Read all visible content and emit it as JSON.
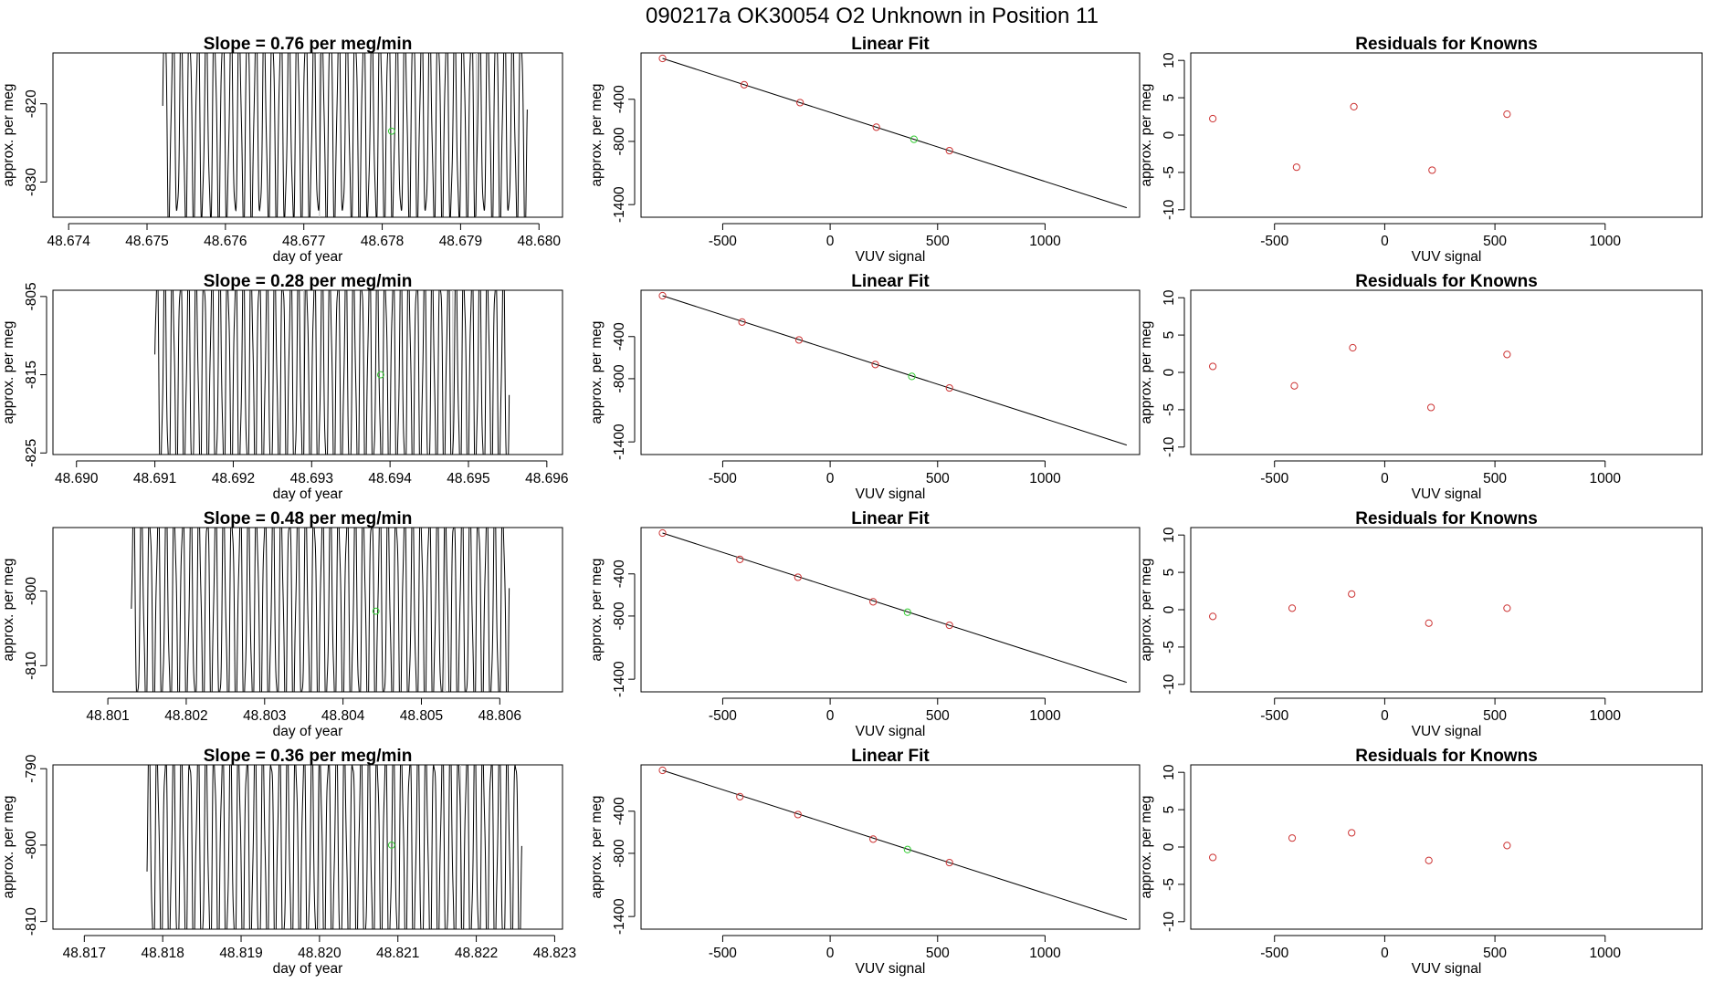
{
  "chart_data": {
    "title": "090217a      OK30054    O2 Unknown in Position  11",
    "colors": {
      "known": "#cc3333",
      "unknown": "#33cc33",
      "line": "#000000",
      "axis": "#000000"
    },
    "rows": [
      {
        "timeseries": {
          "type": "line",
          "title": "Slope =  0.76  per meg/min",
          "xlabel": "day of year",
          "ylabel": "approx. per meg",
          "xlim": [
            48.6738,
            48.6803
          ],
          "ylim": [
            -834.5,
            -813.5
          ],
          "xticks": [
            48.674,
            48.675,
            48.676,
            48.677,
            48.678,
            48.679,
            48.68
          ],
          "xtick_labels": [
            "48.674",
            "48.675",
            "48.676",
            "48.677",
            "48.678",
            "48.679",
            "48.680"
          ],
          "yticks": [
            -830,
            -820
          ],
          "ytick_labels": [
            "-830",
            "-820"
          ],
          "signal": {
            "x_start": 48.6752,
            "x_end": 48.67985,
            "cycles": 44,
            "mean": -822.5,
            "amplitude": 13,
            "ripple": 2.5
          },
          "vlines": [
            48.6772,
            48.6792
          ],
          "unknown_point": {
            "x": 48.67812,
            "y": -823.5
          }
        },
        "fit": {
          "type": "scatter",
          "title": "Linear Fit",
          "xlabel": "VUV signal",
          "ylabel": "approx. per meg",
          "xlim": [
            -880,
            1440
          ],
          "ylim": [
            -1520,
            40
          ],
          "xticks": [
            -500,
            0,
            500,
            1000
          ],
          "xtick_labels": [
            "-500",
            "0",
            "500",
            "1000"
          ],
          "yticks": [
            -1400,
            -800,
            -400
          ],
          "ytick_labels": [
            "-1400",
            "-800",
            "-400"
          ],
          "line": [
            [
              -780,
              -12
            ],
            [
              1380,
              -1430
            ]
          ],
          "knowns": [
            [
              -780,
              -12
            ],
            [
              -400,
              -262
            ],
            [
              -140,
              -432
            ],
            [
              215,
              -665
            ],
            [
              555,
              -888
            ]
          ],
          "unknown": [
            [
              390,
              -780
            ]
          ]
        },
        "residuals": {
          "type": "scatter",
          "title": "Residuals for Knowns",
          "xlabel": "VUV signal",
          "ylabel": "approx. per meg",
          "xlim": [
            -880,
            1440
          ],
          "ylim": [
            -11,
            11
          ],
          "xticks": [
            -500,
            0,
            500,
            1000
          ],
          "xtick_labels": [
            "-500",
            "0",
            "500",
            "1000"
          ],
          "yticks": [
            -10,
            -5,
            0,
            5,
            10
          ],
          "ytick_labels": [
            "-10",
            "-5",
            "0",
            "5",
            "10"
          ],
          "points": [
            [
              -780,
              2.2
            ],
            [
              -400,
              -4.3
            ],
            [
              -140,
              3.8
            ],
            [
              215,
              -4.7
            ],
            [
              555,
              2.8
            ]
          ]
        }
      },
      {
        "timeseries": {
          "type": "line",
          "title": "Slope =  0.28  per meg/min",
          "xlabel": "day of year",
          "ylabel": "approx. per meg",
          "xlim": [
            48.6897,
            48.6962
          ],
          "ylim": [
            -825.2,
            -804.2
          ],
          "xticks": [
            48.69,
            48.691,
            48.692,
            48.693,
            48.694,
            48.695,
            48.696
          ],
          "xtick_labels": [
            "48.690",
            "48.691",
            "48.692",
            "48.693",
            "48.694",
            "48.695",
            "48.696"
          ],
          "yticks": [
            -825,
            -815,
            -805
          ],
          "ytick_labels": [
            "-825",
            "-815",
            "-805"
          ],
          "signal": {
            "x_start": 48.691,
            "x_end": 48.69552,
            "cycles": 45,
            "mean": -815,
            "amplitude": 14,
            "ripple": 3
          },
          "vlines": [
            48.6929,
            48.6948
          ],
          "unknown_point": {
            "x": 48.69388,
            "y": -815
          }
        },
        "fit": {
          "type": "scatter",
          "title": "Linear Fit",
          "xlabel": "VUV signal",
          "ylabel": "approx. per meg",
          "xlim": [
            -880,
            1440
          ],
          "ylim": [
            -1520,
            40
          ],
          "xticks": [
            -500,
            0,
            500,
            1000
          ],
          "xtick_labels": [
            "-500",
            "0",
            "500",
            "1000"
          ],
          "yticks": [
            -1400,
            -800,
            -400
          ],
          "ytick_labels": [
            "-1400",
            "-800",
            "-400"
          ],
          "line": [
            [
              -780,
              -12
            ],
            [
              1380,
              -1430
            ]
          ],
          "knowns": [
            [
              -780,
              -12
            ],
            [
              -410,
              -262
            ],
            [
              -145,
              -432
            ],
            [
              210,
              -665
            ],
            [
              555,
              -888
            ]
          ],
          "unknown": [
            [
              380,
              -778
            ]
          ]
        },
        "residuals": {
          "type": "scatter",
          "title": "Residuals for Knowns",
          "xlabel": "VUV signal",
          "ylabel": "approx. per meg",
          "xlim": [
            -880,
            1440
          ],
          "ylim": [
            -11,
            11
          ],
          "xticks": [
            -500,
            0,
            500,
            1000
          ],
          "xtick_labels": [
            "-500",
            "0",
            "500",
            "1000"
          ],
          "yticks": [
            -10,
            -5,
            0,
            5,
            10
          ],
          "ytick_labels": [
            "-10",
            "-5",
            "0",
            "5",
            "10"
          ],
          "points": [
            [
              -780,
              0.8
            ],
            [
              -410,
              -1.8
            ],
            [
              -145,
              3.3
            ],
            [
              210,
              -4.7
            ],
            [
              555,
              2.4
            ]
          ]
        }
      },
      {
        "timeseries": {
          "type": "line",
          "title": "Slope =  0.48  per meg/min",
          "xlabel": "day of year",
          "ylabel": "approx. per meg",
          "xlim": [
            48.8003,
            48.8068
          ],
          "ylim": [
            -813.5,
            -791.5
          ],
          "xticks": [
            48.801,
            48.802,
            48.803,
            48.804,
            48.805,
            48.806
          ],
          "xtick_labels": [
            "48.801",
            "48.802",
            "48.803",
            "48.804",
            "48.805",
            "48.806"
          ],
          "yticks": [
            -810,
            -800
          ],
          "ytick_labels": [
            "-810",
            "-800"
          ],
          "signal": {
            "x_start": 48.8013,
            "x_end": 48.80612,
            "cycles": 46,
            "mean": -802.5,
            "amplitude": 14,
            "ripple": 3
          },
          "vlines": [
            48.8053
          ],
          "unknown_point": {
            "x": 48.80442,
            "y": -802.7
          }
        },
        "fit": {
          "type": "scatter",
          "title": "Linear Fit",
          "xlabel": "VUV signal",
          "ylabel": "approx. per meg",
          "xlim": [
            -880,
            1440
          ],
          "ylim": [
            -1520,
            40
          ],
          "xticks": [
            -500,
            0,
            500,
            1000
          ],
          "xtick_labels": [
            "-500",
            "0",
            "500",
            "1000"
          ],
          "yticks": [
            -1400,
            -800,
            -400
          ],
          "ytick_labels": [
            "-1400",
            "-800",
            "-400"
          ],
          "line": [
            [
              -780,
              -12
            ],
            [
              1380,
              -1430
            ]
          ],
          "knowns": [
            [
              -780,
              -12
            ],
            [
              -420,
              -262
            ],
            [
              -150,
              -432
            ],
            [
              200,
              -665
            ],
            [
              555,
              -888
            ]
          ],
          "unknown": [
            [
              360,
              -764
            ]
          ]
        },
        "residuals": {
          "type": "scatter",
          "title": "Residuals for Knowns",
          "xlabel": "VUV signal",
          "ylabel": "approx. per meg",
          "xlim": [
            -880,
            1440
          ],
          "ylim": [
            -11,
            11
          ],
          "xticks": [
            -500,
            0,
            500,
            1000
          ],
          "xtick_labels": [
            "-500",
            "0",
            "500",
            "1000"
          ],
          "yticks": [
            -10,
            -5,
            0,
            5,
            10
          ],
          "ytick_labels": [
            "-10",
            "-5",
            "0",
            "5",
            "10"
          ],
          "points": [
            [
              -780,
              -0.9
            ],
            [
              -420,
              0.2
            ],
            [
              -150,
              2.1
            ],
            [
              200,
              -1.8
            ],
            [
              555,
              0.2
            ]
          ]
        }
      },
      {
        "timeseries": {
          "type": "line",
          "title": "Slope =  0.36  per meg/min",
          "xlabel": "day of year",
          "ylabel": "approx. per meg",
          "xlim": [
            48.8166,
            48.8231
          ],
          "ylim": [
            -811,
            -789.5
          ],
          "xticks": [
            48.817,
            48.818,
            48.819,
            48.82,
            48.821,
            48.822,
            48.823
          ],
          "xtick_labels": [
            "48.817",
            "48.818",
            "48.819",
            "48.820",
            "48.821",
            "48.822",
            "48.823"
          ],
          "yticks": [
            -810,
            -800,
            -790
          ],
          "ytick_labels": [
            "-810",
            "-800",
            "-790"
          ],
          "signal": {
            "x_start": 48.8178,
            "x_end": 48.82258,
            "cycles": 46,
            "mean": -801,
            "amplitude": 14,
            "ripple": 3
          },
          "vlines": [
            48.82,
            48.8218
          ],
          "unknown_point": {
            "x": 48.82092,
            "y": -800
          }
        },
        "fit": {
          "type": "scatter",
          "title": "Linear Fit",
          "xlabel": "VUV signal",
          "ylabel": "approx. per meg",
          "xlim": [
            -880,
            1440
          ],
          "ylim": [
            -1520,
            40
          ],
          "xticks": [
            -500,
            0,
            500,
            1000
          ],
          "xtick_labels": [
            "-500",
            "0",
            "500",
            "1000"
          ],
          "yticks": [
            -1400,
            -800,
            -400
          ],
          "ytick_labels": [
            "-1400",
            "-800",
            "-400"
          ],
          "line": [
            [
              -780,
              -12
            ],
            [
              1380,
              -1430
            ]
          ],
          "knowns": [
            [
              -780,
              -12
            ],
            [
              -420,
              -262
            ],
            [
              -150,
              -432
            ],
            [
              200,
              -665
            ],
            [
              555,
              -888
            ]
          ],
          "unknown": [
            [
              360,
              -764
            ]
          ]
        },
        "residuals": {
          "type": "scatter",
          "title": "Residuals for Knowns",
          "xlabel": "VUV signal",
          "ylabel": "approx. per meg",
          "xlim": [
            -880,
            1440
          ],
          "ylim": [
            -11,
            11
          ],
          "xticks": [
            -500,
            0,
            500,
            1000
          ],
          "xtick_labels": [
            "-500",
            "0",
            "500",
            "1000"
          ],
          "yticks": [
            -10,
            -5,
            0,
            5,
            10
          ],
          "ytick_labels": [
            "-10",
            "-5",
            "0",
            "5",
            "10"
          ],
          "points": [
            [
              -780,
              -1.4
            ],
            [
              -420,
              1.2
            ],
            [
              -150,
              1.9
            ],
            [
              200,
              -1.8
            ],
            [
              555,
              0.2
            ]
          ]
        }
      }
    ]
  }
}
